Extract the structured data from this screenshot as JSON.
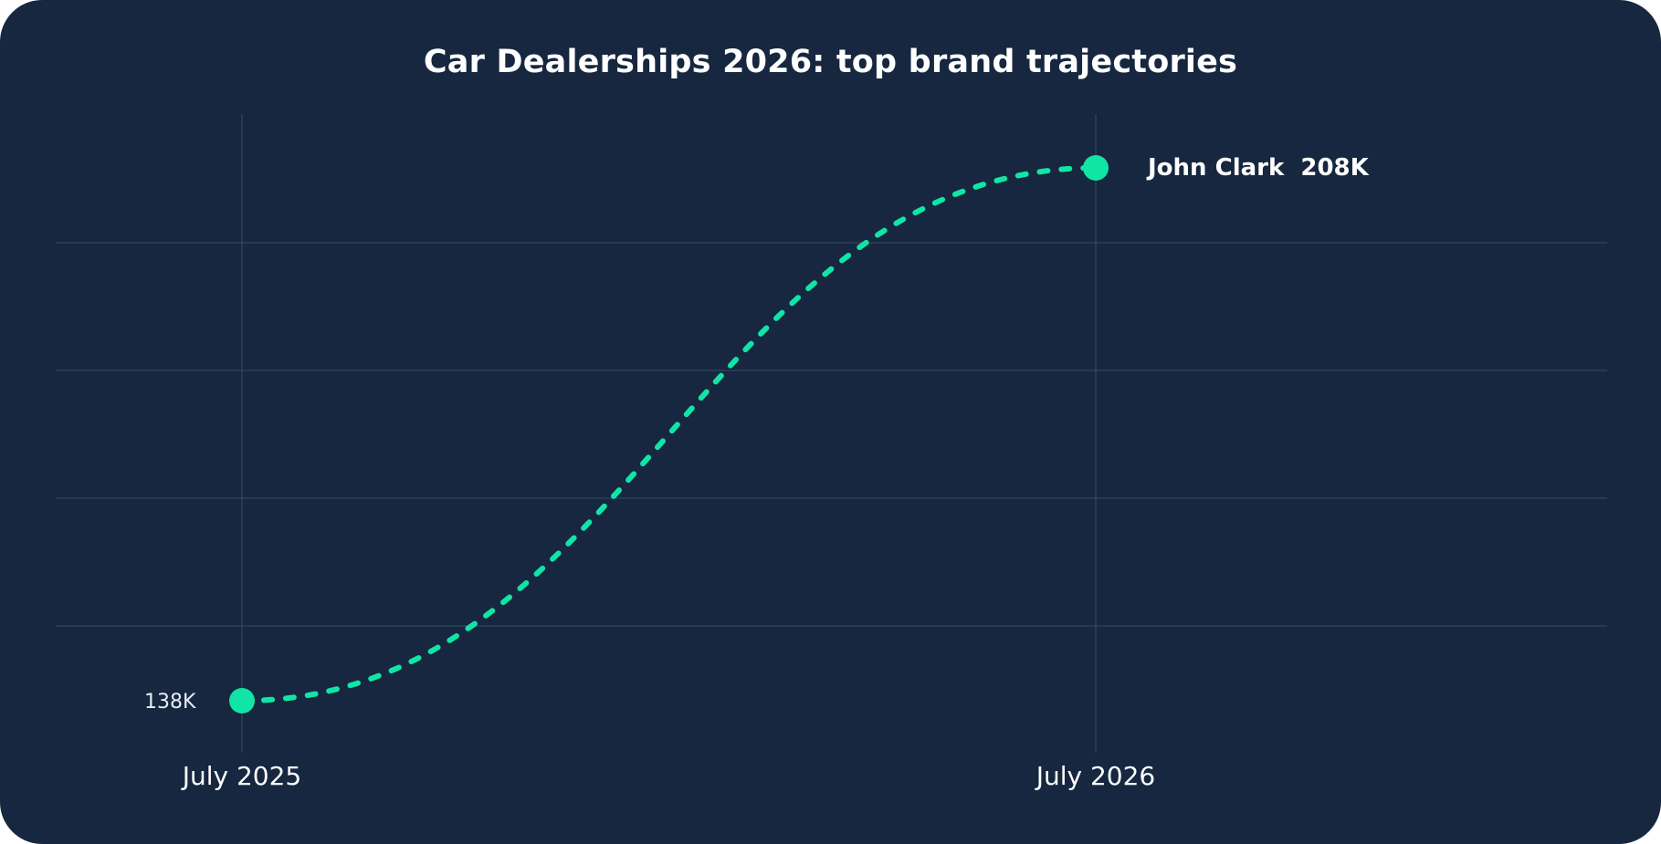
{
  "chart_data": {
    "type": "line",
    "title": "Car Dealerships 2026: top brand trajectories",
    "xlabel": "",
    "ylabel": "",
    "x_ticks": [
      "July 2025",
      "July 2026"
    ],
    "ylim": [
      132,
      212
    ],
    "grid": true,
    "series": [
      {
        "name": "John Clark",
        "x": [
          "July 2025",
          "July 2026"
        ],
        "values": [
          138,
          208
        ],
        "value_labels": [
          "138K",
          "208K"
        ],
        "color": "#10e5a6",
        "line_style": "dotted"
      }
    ]
  },
  "colors": {
    "background": "#16273f",
    "grid": "#34465f",
    "accent": "#10e5a6",
    "text": "#ffffff"
  }
}
